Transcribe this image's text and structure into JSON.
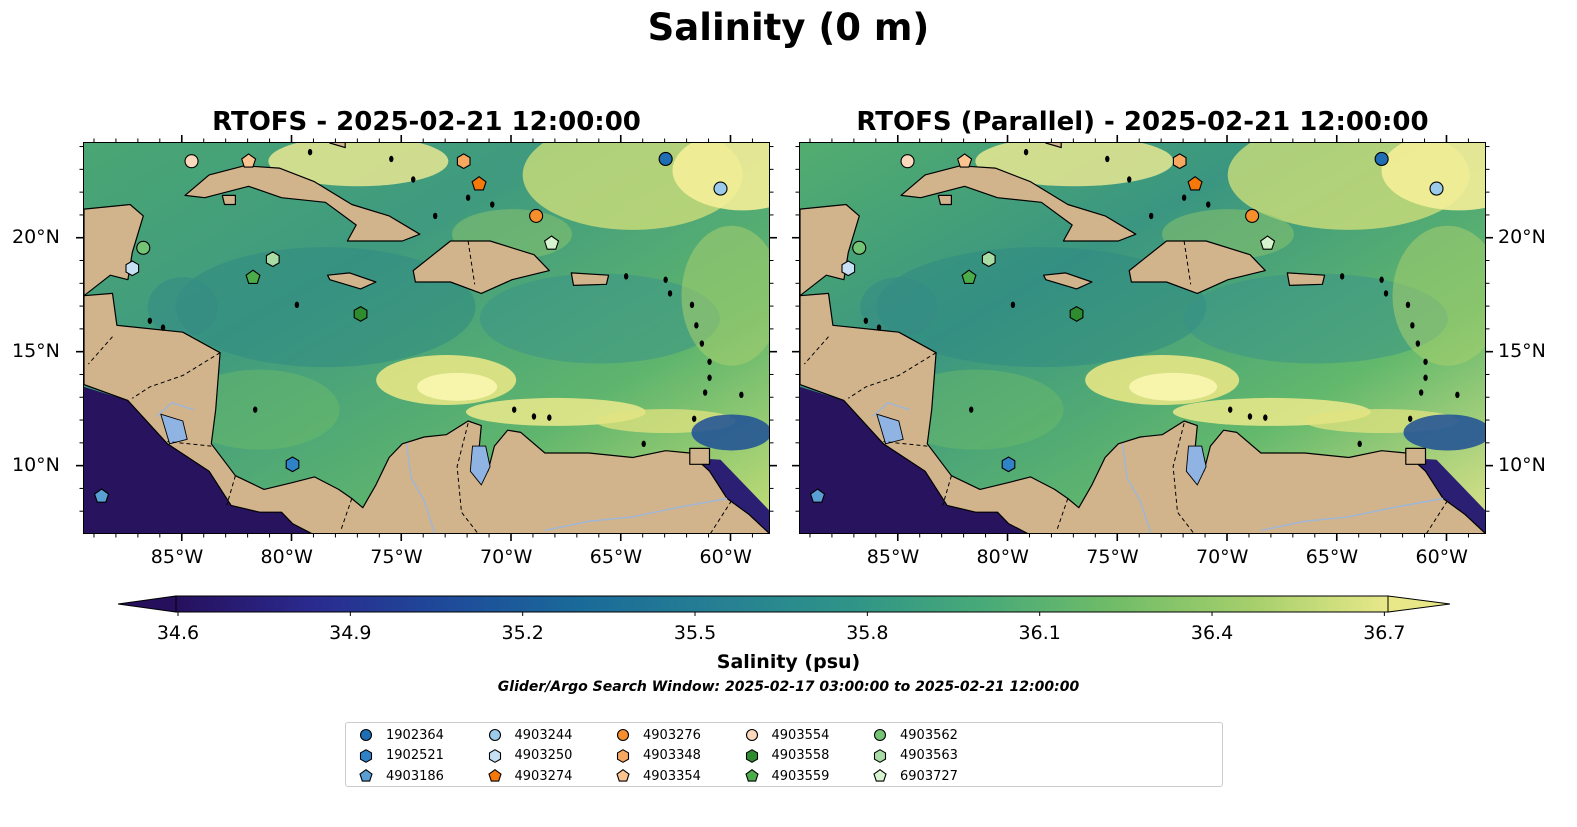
{
  "figure": {
    "title": "Salinity (0 m)",
    "panels": [
      {
        "title": "RTOFS - 2025-02-21 12:00:00"
      },
      {
        "title": "RTOFS (Parallel) - 2025-02-21 12:00:00"
      }
    ],
    "lon_ticks": [
      "85°W",
      "80°W",
      "75°W",
      "70°W",
      "65°W",
      "60°W"
    ],
    "lat_ticks": [
      "20°N",
      "15°N",
      "10°N"
    ],
    "lon_range": [
      -89.5,
      -58.2
    ],
    "lat_range": [
      7.0,
      24.2
    ],
    "land_color": "#d2b48c",
    "lake_color": "#8fb4e3"
  },
  "colorbar": {
    "ticks": [
      "34.6",
      "34.9",
      "35.2",
      "35.5",
      "35.8",
      "36.1",
      "36.4",
      "36.7"
    ],
    "label": "Salinity (psu)",
    "search_window": "Glider/Argo Search Window: 2025-02-17 03:00:00 to 2025-02-21 12:00:00",
    "colors": [
      "#26105d",
      "#2a2a8e",
      "#1e4a9a",
      "#1a6a99",
      "#257f93",
      "#2f9488",
      "#48aa78",
      "#72bd67",
      "#a6cf6c",
      "#e8e889"
    ]
  },
  "chart_data": {
    "type": "map",
    "variable": "Salinity (psu)",
    "colorbar_range": [
      34.6,
      36.7
    ],
    "floats": [
      {
        "id": "1902364",
        "marker": "circle",
        "color": "#1f6db3",
        "lon": -63.0,
        "lat": 23.5
      },
      {
        "id": "1902521",
        "marker": "hexagon",
        "color": "#2f82c6",
        "lon": -80.0,
        "lat": 10.1
      },
      {
        "id": "4903186",
        "marker": "pentagon",
        "color": "#5a9fd4",
        "lon": -88.7,
        "lat": 8.7
      },
      {
        "id": "4903244",
        "marker": "circle",
        "color": "#9ccaea",
        "lon": -60.5,
        "lat": 22.2
      },
      {
        "id": "4903250",
        "marker": "hexagon",
        "color": "#c7e0f4",
        "lon": -87.3,
        "lat": 18.7
      },
      {
        "id": "4903274",
        "marker": "pentagon",
        "color": "#f5780b",
        "lon": -71.5,
        "lat": 22.4
      },
      {
        "id": "4903276",
        "marker": "circle",
        "color": "#f78e2c",
        "lon": -68.9,
        "lat": 21.0
      },
      {
        "id": "4903348",
        "marker": "hexagon",
        "color": "#f7a860",
        "lon": -72.2,
        "lat": 23.4
      },
      {
        "id": "4903354",
        "marker": "pentagon",
        "color": "#fbc490",
        "lon": -82.0,
        "lat": 23.4
      },
      {
        "id": "4903554",
        "marker": "circle",
        "color": "#fbd9bd",
        "lon": -84.6,
        "lat": 23.4
      },
      {
        "id": "4903558",
        "marker": "hexagon",
        "color": "#2e8b2e",
        "lon": -76.9,
        "lat": 16.7
      },
      {
        "id": "4903559",
        "marker": "pentagon",
        "color": "#4aad4a",
        "lon": -81.8,
        "lat": 18.3
      },
      {
        "id": "4903562",
        "marker": "circle",
        "color": "#74c476",
        "lon": -86.8,
        "lat": 19.6
      },
      {
        "id": "4903563",
        "marker": "hexagon",
        "color": "#a8dca4",
        "lon": -80.9,
        "lat": 19.1
      },
      {
        "id": "6903727",
        "marker": "pentagon",
        "color": "#d6f5cf",
        "lon": -68.2,
        "lat": 19.8
      }
    ]
  }
}
